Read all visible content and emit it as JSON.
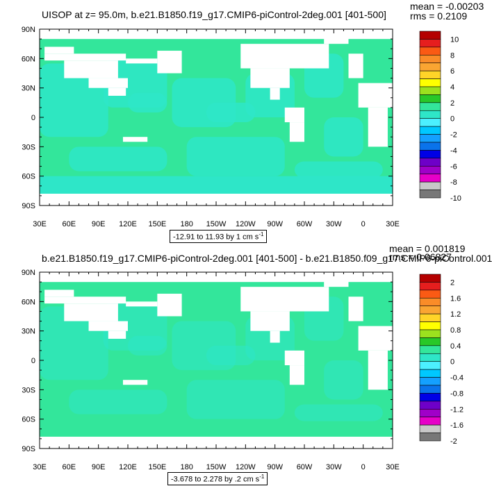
{
  "chart_data": [
    {
      "type": "heatmap",
      "title": "UISOP at z=  95.0m, b.e21.B1850.f19_g17.CMIP6-piControl-2deg.001 [401-500]",
      "stats": {
        "mean": "mean = -0.00203",
        "rms": "rms = 0.2109"
      },
      "range_label": "-12.91 to 11.93 by 1 cm s",
      "range_unit_exp": "-1",
      "xlim": [
        30,
        390
      ],
      "ylim": [
        -90,
        90
      ],
      "x_ticks": [
        "30E",
        "60E",
        "90E",
        "120E",
        "150E",
        "180",
        "150W",
        "120W",
        "90W",
        "60W",
        "30W",
        "0",
        "30E"
      ],
      "y_ticks": [
        "90N",
        "60N",
        "30N",
        "0",
        "30S",
        "60S",
        "90S"
      ],
      "colorbar_labels": [
        "10",
        "8",
        "6",
        "4",
        "2",
        "0",
        "-2",
        "-4",
        "-6",
        "-8",
        "-10"
      ],
      "colorbar_colors": [
        "#b40000",
        "#e61e1e",
        "#fa5a14",
        "#fa8c28",
        "#faa532",
        "#ffd428",
        "#ffff00",
        "#9be11e",
        "#28c828",
        "#33e69b",
        "#2ee6c8",
        "#4cf0ff",
        "#00c8ff",
        "#14a0ff",
        "#0a73eb",
        "#0000e6",
        "#6e00c8",
        "#a000c8",
        "#e600c8",
        "#c8c8c8",
        "#787878"
      ],
      "field_range": [
        -12.91,
        11.93
      ]
    },
    {
      "type": "heatmap",
      "title": "b.e21.B1850.f19_g17.CMIP6-piControl-2deg.001 [401-500] - b.e21.B1850.f09_g17.CMIP6-piControl.001",
      "stats": {
        "mean": "mean = 0.001819",
        "rms": "rms = 0.06827"
      },
      "range_label": "-3.678 to 2.278 by .2 cm s",
      "range_unit_exp": "-1",
      "xlim": [
        30,
        390
      ],
      "ylim": [
        -90,
        90
      ],
      "x_ticks": [
        "30E",
        "60E",
        "90E",
        "120E",
        "150E",
        "180",
        "150W",
        "120W",
        "90W",
        "60W",
        "30W",
        "0",
        "30E"
      ],
      "y_ticks": [
        "90N",
        "60N",
        "30N",
        "0",
        "30S",
        "60S",
        "90S"
      ],
      "colorbar_labels": [
        "2",
        "1.6",
        "1.2",
        "0.8",
        "0.4",
        "0",
        "-0.4",
        "-0.8",
        "-1.2",
        "-1.6",
        "-2"
      ],
      "colorbar_colors": [
        "#b40000",
        "#e61e1e",
        "#fa5a14",
        "#fa8c28",
        "#faa532",
        "#ffd428",
        "#ffff00",
        "#9be11e",
        "#28c828",
        "#33e69b",
        "#2ee6c8",
        "#4cf0ff",
        "#00c8ff",
        "#14a0ff",
        "#0a73eb",
        "#0000e6",
        "#6e00c8",
        "#a000c8",
        "#e600c8",
        "#c8c8c8",
        "#787878"
      ],
      "field_range": [
        -3.678,
        2.278
      ]
    }
  ]
}
